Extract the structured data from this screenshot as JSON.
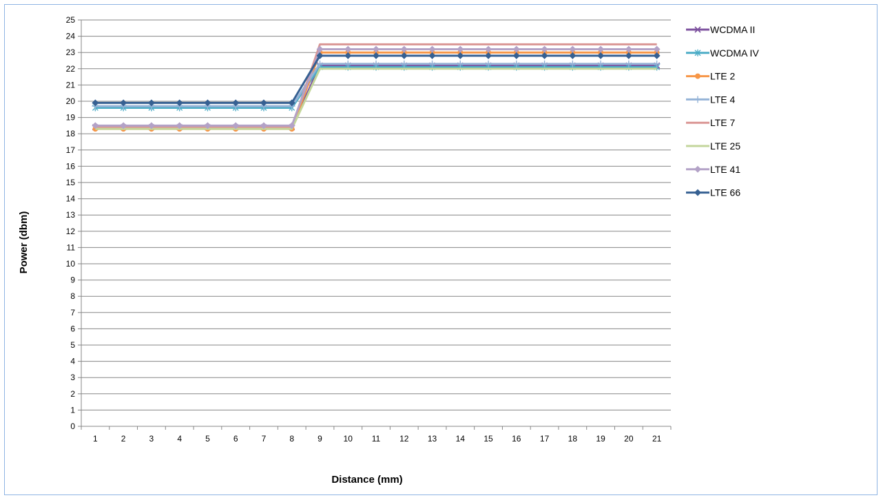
{
  "chart_data": {
    "type": "line",
    "title": "",
    "xlabel": "Distance (mm)",
    "ylabel": "Power (dbm)",
    "x": [
      1,
      2,
      3,
      4,
      5,
      6,
      7,
      8,
      9,
      10,
      11,
      12,
      13,
      14,
      15,
      16,
      17,
      18,
      19,
      20,
      21
    ],
    "ylim": [
      0,
      25
    ],
    "yticks": [
      0,
      1,
      2,
      3,
      4,
      5,
      6,
      7,
      8,
      9,
      10,
      11,
      12,
      13,
      14,
      15,
      16,
      17,
      18,
      19,
      20,
      21,
      22,
      23,
      24,
      25
    ],
    "grid": "horizontal",
    "legend_position": "right",
    "series": [
      {
        "name": "WCDMA II",
        "color": "#7b4f9d",
        "marker": "x",
        "values": [
          18.4,
          18.4,
          18.4,
          18.4,
          18.4,
          18.4,
          18.4,
          18.4,
          22.2,
          22.2,
          22.2,
          22.2,
          22.2,
          22.2,
          22.2,
          22.2,
          22.2,
          22.2,
          22.2,
          22.2,
          22.2
        ]
      },
      {
        "name": "WCDMA IV",
        "color": "#4bacc6",
        "marker": "asterisk",
        "values": [
          19.6,
          19.6,
          19.6,
          19.6,
          19.6,
          19.6,
          19.6,
          19.6,
          22.1,
          22.1,
          22.1,
          22.1,
          22.1,
          22.1,
          22.1,
          22.1,
          22.1,
          22.1,
          22.1,
          22.1,
          22.1
        ]
      },
      {
        "name": "LTE 2",
        "color": "#f79646",
        "marker": "circle",
        "values": [
          18.3,
          18.3,
          18.3,
          18.3,
          18.3,
          18.3,
          18.3,
          18.3,
          23.0,
          23.0,
          23.0,
          23.0,
          23.0,
          23.0,
          23.0,
          23.0,
          23.0,
          23.0,
          23.0,
          23.0,
          23.0
        ]
      },
      {
        "name": "LTE 4",
        "color": "#95b3d7",
        "marker": "plus",
        "values": [
          19.7,
          19.7,
          19.7,
          19.7,
          19.7,
          19.7,
          19.7,
          19.7,
          22.3,
          22.3,
          22.3,
          22.3,
          22.3,
          22.3,
          22.3,
          22.3,
          22.3,
          22.3,
          22.3,
          22.3,
          22.3
        ]
      },
      {
        "name": "LTE 7",
        "color": "#da9694",
        "marker": "none",
        "values": [
          18.4,
          18.4,
          18.4,
          18.4,
          18.4,
          18.4,
          18.4,
          18.4,
          23.5,
          23.5,
          23.5,
          23.5,
          23.5,
          23.5,
          23.5,
          23.5,
          23.5,
          23.5,
          23.5,
          23.5,
          23.5
        ]
      },
      {
        "name": "LTE 25",
        "color": "#c3d69b",
        "marker": "none",
        "values": [
          18.3,
          18.3,
          18.3,
          18.3,
          18.3,
          18.3,
          18.3,
          18.3,
          22.0,
          22.0,
          22.0,
          22.0,
          22.0,
          22.0,
          22.0,
          22.0,
          22.0,
          22.0,
          22.0,
          22.0,
          22.0
        ]
      },
      {
        "name": "LTE 41",
        "color": "#b3a2c7",
        "marker": "diamond",
        "values": [
          18.5,
          18.5,
          18.5,
          18.5,
          18.5,
          18.5,
          18.5,
          18.5,
          23.2,
          23.2,
          23.2,
          23.2,
          23.2,
          23.2,
          23.2,
          23.2,
          23.2,
          23.2,
          23.2,
          23.2,
          23.2
        ]
      },
      {
        "name": "LTE 66",
        "color": "#366092",
        "marker": "diamond",
        "values": [
          19.9,
          19.9,
          19.9,
          19.9,
          19.9,
          19.9,
          19.9,
          19.9,
          22.8,
          22.8,
          22.8,
          22.8,
          22.8,
          22.8,
          22.8,
          22.8,
          22.8,
          22.8,
          22.8,
          22.8,
          22.8
        ]
      }
    ]
  }
}
